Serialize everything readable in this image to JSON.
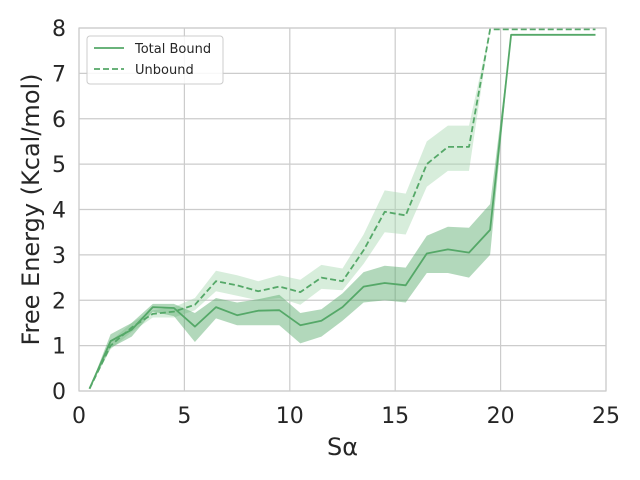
{
  "chart_data": {
    "type": "line",
    "xlabel": "Sα",
    "ylabel": "Free Energy (Kcal/mol)",
    "xlim": [
      0,
      25
    ],
    "ylim": [
      0,
      8
    ],
    "xticks": [
      0,
      5,
      10,
      15,
      20,
      25
    ],
    "yticks": [
      0,
      1,
      2,
      3,
      4,
      5,
      6,
      7,
      8
    ],
    "grid": true,
    "legend_position": "top-left",
    "series": [
      {
        "name": "Total Bound",
        "style": "solid",
        "color": "#55a868",
        "band_color": "#55a868",
        "x": [
          0.5,
          1.5,
          2.5,
          3.5,
          4.5,
          5.5,
          6.5,
          7.5,
          8.5,
          9.5,
          10.5,
          11.5,
          12.5,
          13.5,
          14.5,
          15.5,
          16.5,
          17.5,
          18.5,
          19.5,
          20.5,
          24.5
        ],
        "y": [
          0.05,
          1.1,
          1.35,
          1.85,
          1.83,
          1.42,
          1.85,
          1.67,
          1.77,
          1.78,
          1.45,
          1.55,
          1.85,
          2.3,
          2.38,
          2.33,
          3.03,
          3.12,
          3.05,
          3.55,
          7.85,
          7.85
        ],
        "lower": [
          0.05,
          0.95,
          1.2,
          1.75,
          1.65,
          1.08,
          1.6,
          1.45,
          1.45,
          1.45,
          1.05,
          1.2,
          1.55,
          1.95,
          2.0,
          1.95,
          2.6,
          2.6,
          2.5,
          3.0,
          7.85,
          7.85
        ],
        "upper": [
          0.05,
          1.25,
          1.5,
          1.92,
          1.92,
          1.72,
          2.05,
          1.95,
          2.02,
          2.12,
          1.72,
          1.8,
          2.15,
          2.62,
          2.76,
          2.72,
          3.42,
          3.62,
          3.6,
          4.12,
          7.85,
          7.85
        ]
      },
      {
        "name": "Unbound",
        "style": "dashed",
        "color": "#55a868",
        "band_color": "#a6d7b0",
        "x": [
          0.5,
          1.5,
          2.5,
          3.5,
          4.5,
          5.5,
          6.5,
          7.5,
          8.5,
          9.5,
          10.5,
          11.5,
          12.5,
          13.5,
          14.5,
          15.5,
          16.5,
          17.5,
          18.5,
          19.5,
          20.5,
          24.5
        ],
        "y": [
          0.05,
          1.0,
          1.4,
          1.7,
          1.75,
          1.9,
          2.42,
          2.33,
          2.2,
          2.3,
          2.18,
          2.5,
          2.42,
          3.1,
          3.95,
          3.87,
          5.0,
          5.38,
          5.38,
          7.97,
          7.97,
          7.97
        ],
        "lower": [
          0.05,
          0.92,
          1.3,
          1.62,
          1.62,
          1.78,
          2.2,
          2.1,
          2.0,
          2.05,
          1.9,
          2.25,
          2.22,
          2.8,
          3.5,
          3.45,
          4.5,
          4.85,
          4.85,
          7.97,
          7.97,
          7.97
        ],
        "upper": [
          0.05,
          1.1,
          1.5,
          1.78,
          1.85,
          2.05,
          2.65,
          2.55,
          2.42,
          2.55,
          2.45,
          2.78,
          2.7,
          3.45,
          4.42,
          4.35,
          5.5,
          5.85,
          5.85,
          7.97,
          7.97,
          7.97
        ]
      }
    ]
  }
}
